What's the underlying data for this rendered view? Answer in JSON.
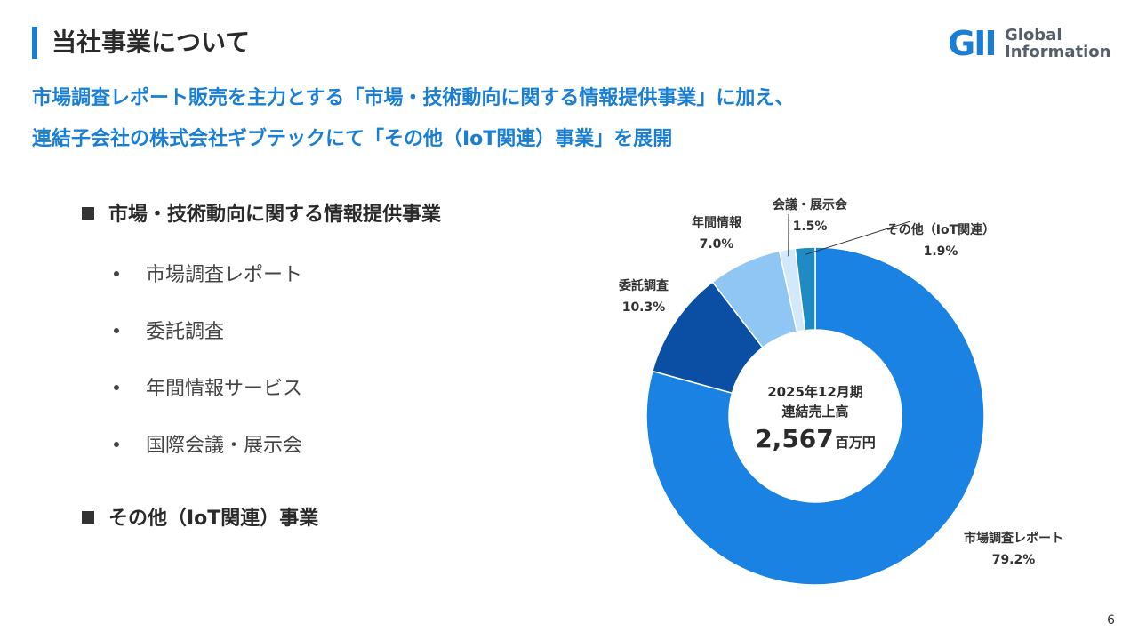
{
  "page": {
    "title": "当社事業について",
    "number": "6"
  },
  "logo": {
    "mark": "GII",
    "line1": "Global",
    "line2": "Information"
  },
  "lead": {
    "line1": "市場調査レポート販売を主力とする「市場・技術動向に関する情報提供事業」に加え、",
    "line2": "連結子会社の株式会社ギブテックにて「その他（IoT関連）事業」を展開"
  },
  "sections": [
    {
      "heading": "市場・技術動向に関する情報提供事業",
      "items": [
        "市場調査レポート",
        "委託調査",
        "年間情報サービス",
        "国際会議・展示会"
      ]
    },
    {
      "heading": "その他（IoT関連）事業",
      "items": []
    }
  ],
  "chart_data": {
    "type": "pie",
    "center": {
      "line1": "2025年12月期",
      "line2": "連結売上高",
      "value": "2,567",
      "unit": "百万円"
    },
    "slices": [
      {
        "label": "市場調査レポート",
        "value": 79.2,
        "display": "79.2%",
        "color": "#1a82e2"
      },
      {
        "label": "委託調査",
        "value": 10.3,
        "display": "10.3%",
        "color": "#0a4fa3"
      },
      {
        "label": "年間情報",
        "value": 7.0,
        "display": "7.0%",
        "color": "#90c6f3"
      },
      {
        "label": "会議・展示会",
        "value": 1.5,
        "display": "1.5%",
        "color": "#d2e9fb"
      },
      {
        "label": "その他（IoT関連）",
        "value": 1.9,
        "display": "1.9%",
        "color": "#1f8ac4"
      }
    ]
  }
}
